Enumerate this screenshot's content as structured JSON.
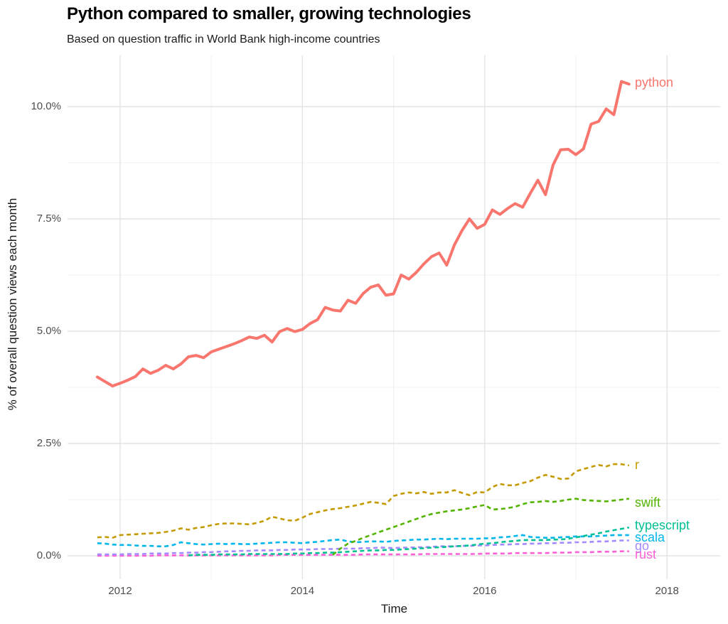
{
  "chart_data": {
    "type": "line",
    "title": "Python compared to smaller, growing technologies",
    "subtitle": "Based on question traffic in World Bank high-income countries",
    "xlabel": "Time",
    "ylabel": "% of overall question views each month",
    "grid": true,
    "legend_position": "end-of-line-labels",
    "x_axis": {
      "major_ticks": [
        2012,
        2014,
        2016,
        2018
      ],
      "minor_gridlines": [
        2013,
        2015,
        2017
      ],
      "range": [
        2011.42,
        2018.58
      ]
    },
    "y_axis": {
      "tick_labels": [
        "0.0%",
        "2.5%",
        "5.0%",
        "7.5%",
        "10.0%"
      ],
      "tick_values": [
        0,
        2.5,
        5,
        7.5,
        10
      ],
      "minor_gridlines": [
        1.25,
        3.75,
        6.25,
        8.75
      ],
      "range": [
        -0.5,
        11.1
      ]
    },
    "series": [
      {
        "name": "python",
        "color": "#F8766D",
        "line_style": "solid",
        "start": "2011-10",
        "values": [
          3.98,
          3.88,
          3.78,
          3.84,
          3.91,
          3.99,
          4.16,
          4.06,
          4.13,
          4.24,
          4.16,
          4.27,
          4.43,
          4.46,
          4.41,
          4.54,
          4.6,
          4.66,
          4.72,
          4.79,
          4.87,
          4.84,
          4.91,
          4.76,
          4.99,
          5.06,
          4.99,
          5.04,
          5.17,
          5.26,
          5.53,
          5.47,
          5.45,
          5.69,
          5.62,
          5.84,
          5.98,
          6.03,
          5.8,
          5.83,
          6.25,
          6.16,
          6.31,
          6.5,
          6.66,
          6.74,
          6.47,
          6.92,
          7.24,
          7.5,
          7.29,
          7.38,
          7.7,
          7.6,
          7.73,
          7.84,
          7.76,
          8.07,
          8.36,
          8.04,
          8.7,
          9.04,
          9.05,
          8.93,
          9.06,
          9.61,
          9.67,
          9.95,
          9.82,
          10.56,
          10.5
        ]
      },
      {
        "name": "r",
        "color": "#C49A00",
        "line_style": "dashed",
        "start": "2011-10",
        "values": [
          0.41,
          0.42,
          0.4,
          0.46,
          0.47,
          0.48,
          0.49,
          0.5,
          0.51,
          0.53,
          0.56,
          0.61,
          0.58,
          0.62,
          0.64,
          0.68,
          0.71,
          0.72,
          0.72,
          0.71,
          0.7,
          0.73,
          0.78,
          0.87,
          0.83,
          0.79,
          0.78,
          0.85,
          0.93,
          0.97,
          1.01,
          1.04,
          1.06,
          1.09,
          1.12,
          1.16,
          1.2,
          1.18,
          1.15,
          1.33,
          1.38,
          1.41,
          1.39,
          1.42,
          1.38,
          1.41,
          1.41,
          1.46,
          1.4,
          1.35,
          1.42,
          1.41,
          1.53,
          1.6,
          1.57,
          1.57,
          1.62,
          1.66,
          1.74,
          1.8,
          1.76,
          1.71,
          1.72,
          1.88,
          1.93,
          1.98,
          2.02,
          1.99,
          2.04,
          2.04,
          2.01
        ]
      },
      {
        "name": "swift",
        "color": "#53B400",
        "line_style": "dashed",
        "start": "2014-05",
        "values": [
          0.02,
          0.16,
          0.27,
          0.33,
          0.4,
          0.46,
          0.52,
          0.58,
          0.64,
          0.7,
          0.76,
          0.82,
          0.88,
          0.93,
          0.96,
          0.99,
          1.01,
          1.03,
          1.06,
          1.1,
          1.13,
          1.03,
          1.04,
          1.06,
          1.09,
          1.15,
          1.19,
          1.2,
          1.22,
          1.2,
          1.22,
          1.25,
          1.27,
          1.24,
          1.23,
          1.22,
          1.21,
          1.23,
          1.25,
          1.27
        ]
      },
      {
        "name": "typescript",
        "color": "#00C094",
        "line_style": "dashed",
        "start": "2012-10",
        "values": [
          0.01,
          0.02,
          0.02,
          0.02,
          0.03,
          0.03,
          0.03,
          0.03,
          0.04,
          0.04,
          0.04,
          0.04,
          0.04,
          0.04,
          0.05,
          0.05,
          0.06,
          0.06,
          0.07,
          0.07,
          0.08,
          0.09,
          0.1,
          0.11,
          0.12,
          0.12,
          0.13,
          0.13,
          0.14,
          0.15,
          0.16,
          0.17,
          0.18,
          0.19,
          0.2,
          0.21,
          0.22,
          0.23,
          0.25,
          0.27,
          0.28,
          0.3,
          0.32,
          0.33,
          0.35,
          0.35,
          0.35,
          0.35,
          0.36,
          0.36,
          0.38,
          0.41,
          0.44,
          0.47,
          0.5,
          0.54,
          0.57,
          0.6,
          0.63
        ]
      },
      {
        "name": "scala",
        "color": "#00B6EB",
        "line_style": "dashed",
        "start": "2011-10",
        "values": [
          0.28,
          0.27,
          0.25,
          0.24,
          0.24,
          0.23,
          0.22,
          0.22,
          0.21,
          0.21,
          0.24,
          0.3,
          0.28,
          0.26,
          0.25,
          0.26,
          0.27,
          0.26,
          0.27,
          0.26,
          0.26,
          0.27,
          0.28,
          0.29,
          0.3,
          0.3,
          0.29,
          0.28,
          0.3,
          0.31,
          0.33,
          0.35,
          0.36,
          0.32,
          0.3,
          0.31,
          0.32,
          0.32,
          0.31,
          0.33,
          0.34,
          0.35,
          0.36,
          0.36,
          0.37,
          0.38,
          0.37,
          0.38,
          0.38,
          0.38,
          0.38,
          0.39,
          0.39,
          0.41,
          0.42,
          0.44,
          0.46,
          0.42,
          0.41,
          0.4,
          0.4,
          0.41,
          0.42,
          0.43,
          0.43,
          0.43,
          0.44,
          0.45,
          0.46,
          0.46,
          0.46
        ]
      },
      {
        "name": "go",
        "color": "#A58AFF",
        "line_style": "dashed",
        "start": "2011-10",
        "values": [
          0.03,
          0.03,
          0.03,
          0.03,
          0.04,
          0.04,
          0.04,
          0.05,
          0.05,
          0.05,
          0.06,
          0.06,
          0.07,
          0.07,
          0.08,
          0.08,
          0.09,
          0.1,
          0.1,
          0.11,
          0.11,
          0.12,
          0.12,
          0.12,
          0.13,
          0.13,
          0.14,
          0.14,
          0.14,
          0.15,
          0.15,
          0.15,
          0.16,
          0.16,
          0.16,
          0.17,
          0.17,
          0.18,
          0.18,
          0.17,
          0.18,
          0.18,
          0.19,
          0.19,
          0.2,
          0.21,
          0.21,
          0.21,
          0.22,
          0.22,
          0.23,
          0.23,
          0.24,
          0.25,
          0.25,
          0.26,
          0.26,
          0.27,
          0.27,
          0.28,
          0.28,
          0.29,
          0.29,
          0.3,
          0.3,
          0.31,
          0.32,
          0.32,
          0.33,
          0.34,
          0.34
        ]
      },
      {
        "name": "rust",
        "color": "#FB61D7",
        "line_style": "dashed",
        "start": "2011-10",
        "values": [
          0.0,
          0.0,
          0.0,
          0.0,
          0.0,
          0.0,
          0.0,
          0.0,
          0.01,
          0.01,
          0.01,
          0.01,
          0.01,
          0.01,
          0.01,
          0.01,
          0.01,
          0.01,
          0.01,
          0.01,
          0.01,
          0.01,
          0.01,
          0.01,
          0.02,
          0.02,
          0.02,
          0.02,
          0.02,
          0.02,
          0.02,
          0.02,
          0.02,
          0.02,
          0.02,
          0.03,
          0.03,
          0.03,
          0.03,
          0.03,
          0.03,
          0.03,
          0.03,
          0.04,
          0.04,
          0.04,
          0.04,
          0.04,
          0.04,
          0.04,
          0.04,
          0.05,
          0.05,
          0.05,
          0.05,
          0.06,
          0.06,
          0.06,
          0.06,
          0.06,
          0.07,
          0.07,
          0.07,
          0.08,
          0.08,
          0.08,
          0.09,
          0.09,
          0.09,
          0.1,
          0.1
        ]
      }
    ],
    "style": {
      "grid_major_color": "#E3E3E3",
      "grid_minor_color": "#F0F0F0",
      "background": "#FFFFFF",
      "tick_label_color": "#4d4d4d"
    }
  }
}
